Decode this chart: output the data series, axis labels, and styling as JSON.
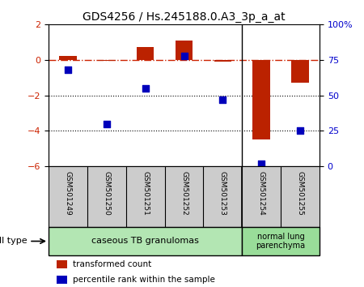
{
  "title": "GDS4256 / Hs.245188.0.A3_3p_a_at",
  "samples": [
    "GSM501249",
    "GSM501250",
    "GSM501251",
    "GSM501252",
    "GSM501253",
    "GSM501254",
    "GSM501255"
  ],
  "transformed_count": [
    0.2,
    -0.05,
    0.7,
    1.1,
    -0.1,
    -4.5,
    -1.3
  ],
  "percentile_rank": [
    68,
    30,
    55,
    78,
    47,
    2,
    25
  ],
  "ylim_left": [
    -6,
    2
  ],
  "ylim_right": [
    0,
    100
  ],
  "yticks_left": [
    -6,
    -4,
    -2,
    0,
    2
  ],
  "yticks_right": [
    0,
    25,
    50,
    75,
    100
  ],
  "ytick_labels_right": [
    "0",
    "25",
    "50",
    "75",
    "100%"
  ],
  "dotted_hlines": [
    -2,
    -4
  ],
  "bar_color": "#bb2200",
  "scatter_color": "#0000bb",
  "hline_color": "#cc2200",
  "bar_width": 0.45,
  "scatter_size": 40,
  "group1_label": "caseous TB granulomas",
  "group2_label": "normal lung\nparenchyma",
  "group1_color": "#b3e6b3",
  "group2_color": "#99dd99",
  "sample_box_color": "#cccccc",
  "cell_type_label": "cell type",
  "legend_bar_label": "transformed count",
  "legend_scatter_label": "percentile rank within the sample",
  "background_color": "#ffffff",
  "tick_label_color_left": "#cc2200",
  "tick_label_color_right": "#0000cc"
}
